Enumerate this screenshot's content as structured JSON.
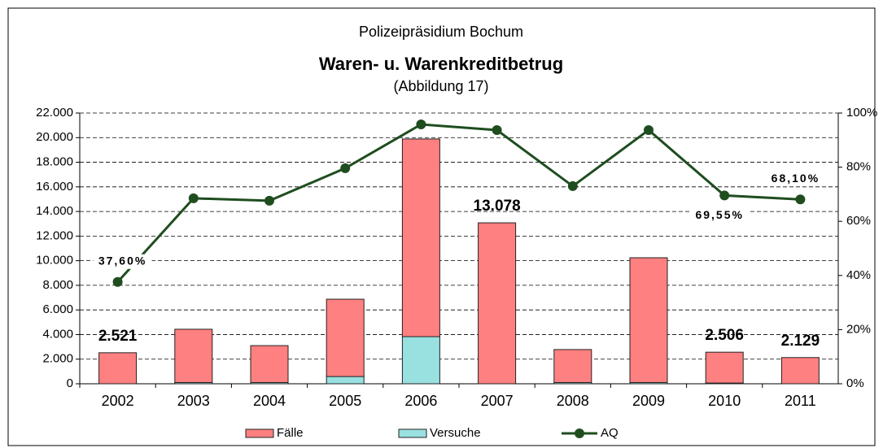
{
  "chart_data": {
    "type": "bar",
    "title": "Waren- u. Warenkreditbetrug",
    "supertitle": "Polizeipräsidium Bochum",
    "subtitle": "(Abbildung 17)",
    "stacked": true,
    "grid": true,
    "legend": "bottom",
    "categories": [
      "2002",
      "2003",
      "2004",
      "2005",
      "2006",
      "2007",
      "2008",
      "2009",
      "2010",
      "2011"
    ],
    "series": [
      {
        "name": "Fälle",
        "color": "#ff8080",
        "values": [
          2521,
          4330,
          3000,
          6280,
          16060,
          13078,
          2680,
          10140,
          2506,
          2129
        ],
        "value_labels": [
          "2.521",
          null,
          null,
          null,
          null,
          "13.078",
          null,
          null,
          "2.506",
          "2.129"
        ]
      },
      {
        "name": "Versuche",
        "color": "#99e0e0",
        "values": [
          0,
          100,
          100,
          590,
          3830,
          0,
          100,
          100,
          60,
          0
        ]
      },
      {
        "name": "AQ",
        "color": "#1f4d1f",
        "axis": "y2",
        "type": "line",
        "values": [
          37.6,
          68.5,
          67.6,
          79.6,
          95.8,
          93.7,
          73.0,
          93.7,
          69.55,
          68.1
        ],
        "value_labels": [
          "37,60%",
          null,
          null,
          null,
          null,
          null,
          null,
          null,
          "69,55%",
          "68,10%"
        ]
      }
    ],
    "ylim": [
      0,
      22000
    ],
    "yticks": [
      0,
      {
        "value": 2000,
        "label": "2.000"
      },
      {
        "value": 4000,
        "label": "4.000"
      },
      {
        "value": 6000,
        "label": "6.000"
      },
      {
        "value": 8000,
        "label": "8.000"
      },
      {
        "value": 10000,
        "label": "10.000"
      },
      {
        "value": 12000,
        "label": "12.000"
      },
      {
        "value": 14000,
        "label": "14.000"
      },
      {
        "value": 16000,
        "label": "16.000"
      },
      {
        "value": 18000,
        "label": "18.000"
      },
      {
        "value": 20000,
        "label": "20.000"
      },
      {
        "value": 22000,
        "label": "22.000"
      }
    ],
    "y2lim": [
      0,
      100
    ],
    "y2ticks": [
      {
        "value": 0,
        "label": "0%"
      },
      {
        "value": 20,
        "label": "20%"
      },
      {
        "value": 40,
        "label": "40%"
      },
      {
        "value": 60,
        "label": "60%"
      },
      {
        "value": 80,
        "label": "80%"
      },
      {
        "value": 100,
        "label": "100%"
      }
    ]
  }
}
